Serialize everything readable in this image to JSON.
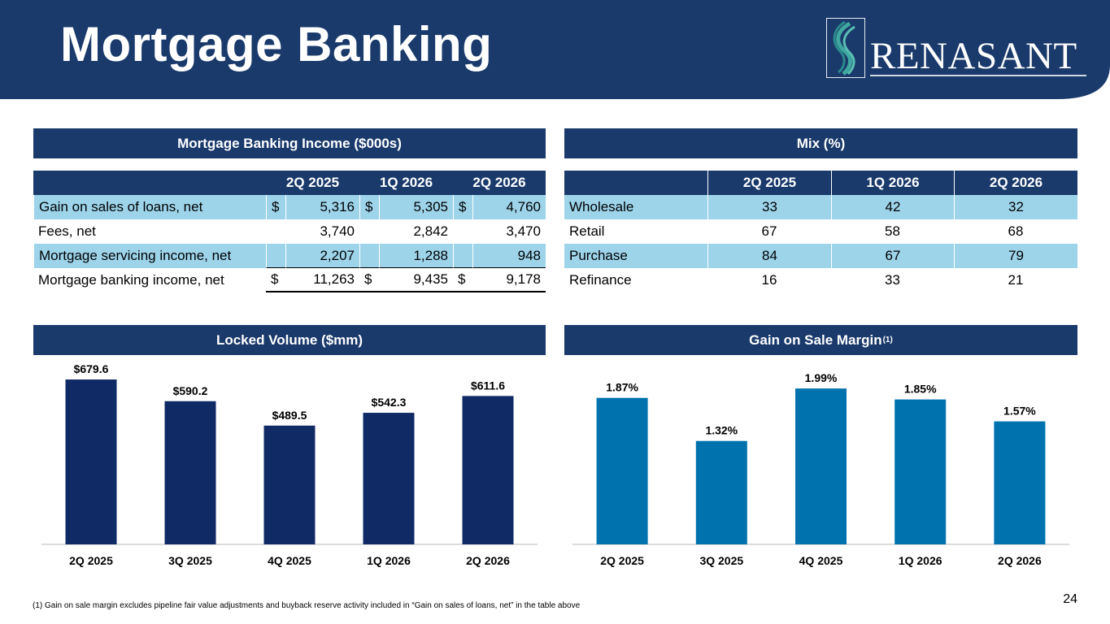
{
  "page": {
    "title": "Mortgage Banking",
    "logo_text": "RENASANT",
    "page_number": "24",
    "footnote": "(1)  Gain on sale margin excludes pipeline fair value adjustments and buyback reserve activity included in “Gain on sales of loans, net” in the table above",
    "colors": {
      "navy": "#1a3a6b",
      "shade": "#9dd4ea",
      "locked_bar": "#102a66",
      "margin_bar": "#0072ae"
    }
  },
  "income": {
    "heading": "Mortgage Banking Income ($000s)",
    "columns": [
      "2Q 2025",
      "1Q 2026",
      "2Q 2026"
    ],
    "rows": [
      {
        "label": "Gain on sales of loans, net",
        "cur": [
          "$",
          "$",
          "$"
        ],
        "values": [
          "5,316",
          "5,305",
          "4,760"
        ]
      },
      {
        "label": "Fees, net",
        "cur": [
          "",
          "",
          ""
        ],
        "values": [
          "3,740",
          "2,842",
          "3,470"
        ]
      },
      {
        "label": "Mortgage servicing income, net",
        "cur": [
          "",
          "",
          ""
        ],
        "values": [
          "2,207",
          "1,288",
          "948"
        ]
      },
      {
        "label": "Mortgage banking income, net",
        "cur": [
          "$",
          "$",
          "$"
        ],
        "values": [
          "11,263",
          "9,435",
          "9,178"
        ]
      }
    ]
  },
  "mix": {
    "heading": "Mix (%)",
    "columns": [
      "2Q 2025",
      "1Q 2026",
      "2Q 2026"
    ],
    "rows": [
      {
        "label": "Wholesale",
        "values": [
          "33",
          "42",
          "32"
        ]
      },
      {
        "label": "Retail",
        "values": [
          "67",
          "58",
          "68"
        ]
      },
      {
        "label": "Purchase",
        "values": [
          "84",
          "67",
          "79"
        ]
      },
      {
        "label": "Refinance",
        "values": [
          "16",
          "33",
          "21"
        ]
      }
    ]
  },
  "locked": {
    "heading": "Locked Volume ($mm)"
  },
  "margin": {
    "heading": "Gain on Sale Margin",
    "heading_sup": "(1)"
  },
  "chart_data": [
    {
      "type": "bar",
      "title": "Locked Volume ($mm)",
      "categories": [
        "2Q 2025",
        "3Q 2025",
        "4Q 2025",
        "1Q 2026",
        "2Q 2026"
      ],
      "values": [
        679.6,
        590.2,
        489.5,
        542.3,
        611.6
      ],
      "labels": [
        "$679.6",
        "$590.2",
        "$489.5",
        "$542.3",
        "$611.6"
      ],
      "ylim": [
        0,
        720
      ],
      "grid": false,
      "color": "#102a66"
    },
    {
      "type": "bar",
      "title": "Gain on Sale Margin(1)",
      "categories": [
        "2Q 2025",
        "3Q 2025",
        "4Q 2025",
        "1Q 2026",
        "2Q 2026"
      ],
      "values": [
        1.87,
        1.32,
        1.99,
        1.85,
        1.57
      ],
      "labels": [
        "1.87%",
        "1.32%",
        "1.99%",
        "1.85%",
        "1.57%"
      ],
      "ylim": [
        0,
        2.23
      ],
      "grid": false,
      "color": "#0072ae"
    }
  ]
}
